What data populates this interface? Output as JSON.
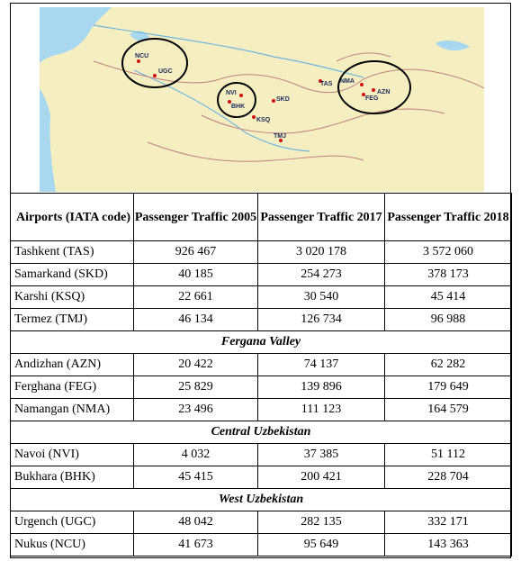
{
  "map": {
    "labels": [
      {
        "code": "NCU"
      },
      {
        "code": "UGC"
      },
      {
        "code": "NVI"
      },
      {
        "code": "BHK"
      },
      {
        "code": "SKD"
      },
      {
        "code": "KSQ"
      },
      {
        "code": "TMJ"
      },
      {
        "code": "TAS"
      },
      {
        "code": "NMA"
      },
      {
        "code": "AZN"
      },
      {
        "code": "FEG"
      }
    ],
    "colors": {
      "land": "#f5eec0",
      "water": "#a8d8f0",
      "border": "#c08080",
      "marker": "#d01010",
      "circle": "#000000"
    }
  },
  "table": {
    "headers": [
      "Airports (IATA code)",
      "Passenger Traffic 2005",
      "Passenger Traffic 2017",
      "Passenger Traffic 2018"
    ],
    "rows": [
      {
        "name": "Tashkent (TAS)",
        "v2005": "926 467",
        "v2017": "3 020 178",
        "v2018": "3 572 060"
      },
      {
        "name": "Samarkand (SKD)",
        "v2005": "40 185",
        "v2017": "254 273",
        "v2018": "378 173"
      },
      {
        "name": "Karshi (KSQ)",
        "v2005": "22 661",
        "v2017": "30 540",
        "v2018": "45 414"
      },
      {
        "name": "Termez (TMJ)",
        "v2005": "46 134",
        "v2017": "126 734",
        "v2018": "96 988"
      }
    ],
    "sections": [
      {
        "title": "Fergana Valley",
        "rows": [
          {
            "name": "Andizhan (AZN)",
            "v2005": "20 422",
            "v2017": "74 137",
            "v2018": "62 282"
          },
          {
            "name": "Ferghana (FEG)",
            "v2005": "25 829",
            "v2017": "139 896",
            "v2018": "179 649"
          },
          {
            "name": "Namangan (NMA)",
            "v2005": "23 496",
            "v2017": "111 123",
            "v2018": "164 579"
          }
        ]
      },
      {
        "title": "Central Uzbekistan",
        "rows": [
          {
            "name": "Navoi (NVI)",
            "v2005": "4 032",
            "v2017": "37 385",
            "v2018": "51 112"
          },
          {
            "name": "Bukhara (BHK)",
            "v2005": "45 415",
            "v2017": "200 421",
            "v2018": "228 704"
          }
        ]
      },
      {
        "title": "West Uzbekistan",
        "rows": [
          {
            "name": "Urgench (UGC)",
            "v2005": "48 042",
            "v2017": "282 135",
            "v2018": "332 171"
          },
          {
            "name": "Nukus (NCU)",
            "v2005": "41 673",
            "v2017": "95 649",
            "v2018": "143 363"
          }
        ]
      }
    ]
  }
}
